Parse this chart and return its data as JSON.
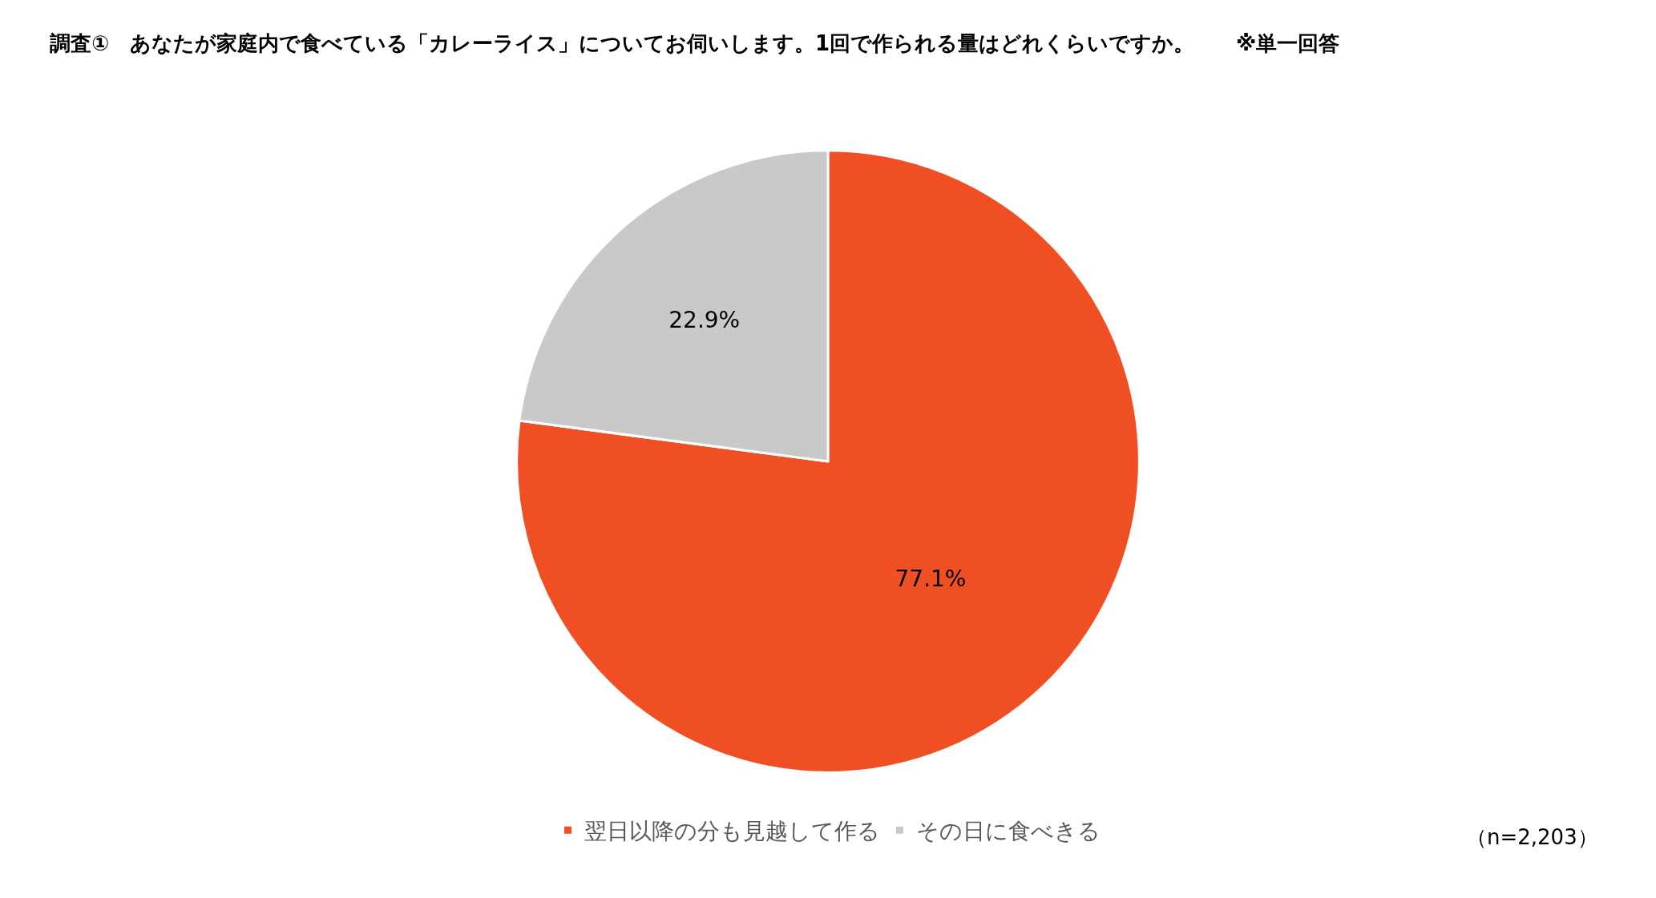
{
  "chart_data": {
    "type": "pie",
    "title": "調査①　あなたが家庭内で食べている「カレーライス」についてお伺いします。1回で作られる量はどれくらいですか。　　※単一回答",
    "categories": [
      "翌日以降の分も見越して作る",
      "その日に食べきる"
    ],
    "values": [
      77.1,
      22.9
    ],
    "value_labels": [
      "77.1%",
      "22.9%"
    ],
    "colors": [
      "#f04e23",
      "#c9c9c9"
    ],
    "legend": "bottom",
    "annotations": [
      "（n=2,203）"
    ]
  }
}
